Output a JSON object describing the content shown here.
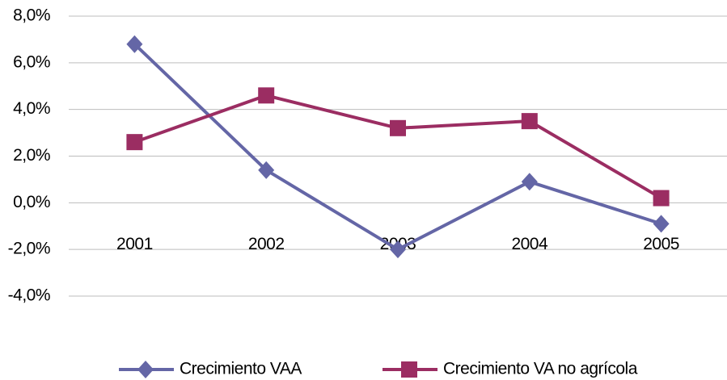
{
  "chart_data": {
    "type": "line",
    "categories": [
      "2001",
      "2002",
      "2003",
      "2004",
      "2005"
    ],
    "series": [
      {
        "name": "Crecimiento VAA",
        "color": "#6466a6",
        "marker": "diamond",
        "values": [
          6.8,
          1.4,
          -2.0,
          0.9,
          -0.9
        ]
      },
      {
        "name": "Crecimiento VA no agrícola",
        "color": "#9b2d62",
        "marker": "square",
        "values": [
          2.6,
          4.6,
          3.2,
          3.5,
          0.2
        ]
      }
    ],
    "ylim": [
      -4,
      8
    ],
    "yticks": [
      {
        "value": -4,
        "label": "-4,0%"
      },
      {
        "value": -2,
        "label": "-2,0%"
      },
      {
        "value": 0,
        "label": "0,0%"
      },
      {
        "value": 2,
        "label": "2,0%"
      },
      {
        "value": 4,
        "label": "4,0%"
      },
      {
        "value": 6,
        "label": "6,0%"
      },
      {
        "value": 8,
        "label": "8,0%"
      }
    ],
    "grid": true,
    "legend": "bottom"
  }
}
